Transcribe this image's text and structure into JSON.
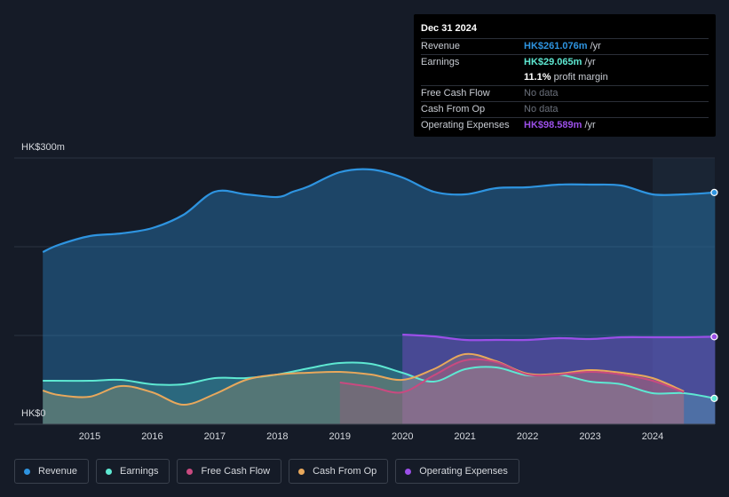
{
  "chart_data": {
    "type": "area",
    "y_unit_label_top": "HK$300m",
    "y_unit_label_bottom": "HK$0",
    "ylim": [
      0,
      300
    ],
    "xlim": [
      2014.0,
      2025.0
    ],
    "x_ticks": [
      "2015",
      "2016",
      "2017",
      "2018",
      "2019",
      "2020",
      "2021",
      "2022",
      "2023",
      "2024"
    ],
    "forecast_shade_start": 2024.0,
    "series": [
      {
        "name": "Revenue",
        "color": "#2e94e0",
        "points": [
          [
            2014.25,
            194
          ],
          [
            2014.5,
            202
          ],
          [
            2015.0,
            212
          ],
          [
            2015.5,
            215
          ],
          [
            2016.0,
            221
          ],
          [
            2016.5,
            236
          ],
          [
            2017.0,
            262
          ],
          [
            2017.5,
            259
          ],
          [
            2018.0,
            256
          ],
          [
            2018.25,
            262
          ],
          [
            2018.5,
            268
          ],
          [
            2019.0,
            284
          ],
          [
            2019.5,
            287
          ],
          [
            2020.0,
            278
          ],
          [
            2020.5,
            262
          ],
          [
            2021.0,
            259
          ],
          [
            2021.5,
            266
          ],
          [
            2022.0,
            267
          ],
          [
            2022.5,
            270
          ],
          [
            2023.0,
            270
          ],
          [
            2023.5,
            269
          ],
          [
            2024.0,
            259
          ],
          [
            2024.5,
            259
          ],
          [
            2025.0,
            261.1
          ]
        ]
      },
      {
        "name": "Earnings",
        "color": "#5ee8d2",
        "points": [
          [
            2014.25,
            49
          ],
          [
            2015.0,
            49
          ],
          [
            2015.5,
            50
          ],
          [
            2016.0,
            45
          ],
          [
            2016.5,
            45
          ],
          [
            2017.0,
            52
          ],
          [
            2017.5,
            52
          ],
          [
            2018.0,
            56
          ],
          [
            2018.5,
            63
          ],
          [
            2019.0,
            69
          ],
          [
            2019.5,
            68
          ],
          [
            2020.0,
            58
          ],
          [
            2020.5,
            48
          ],
          [
            2021.0,
            62
          ],
          [
            2021.5,
            64
          ],
          [
            2022.0,
            55
          ],
          [
            2022.5,
            56
          ],
          [
            2023.0,
            48
          ],
          [
            2023.5,
            45
          ],
          [
            2024.0,
            35
          ],
          [
            2024.5,
            35
          ],
          [
            2025.0,
            29.1
          ]
        ]
      },
      {
        "name": "Free Cash Flow",
        "color": "#c94a80",
        "points": [
          [
            2019.0,
            47
          ],
          [
            2019.5,
            42
          ],
          [
            2020.0,
            36
          ],
          [
            2020.5,
            55
          ],
          [
            2021.0,
            72
          ],
          [
            2021.5,
            70
          ],
          [
            2022.0,
            56
          ],
          [
            2022.5,
            56
          ],
          [
            2023.0,
            59
          ],
          [
            2023.5,
            56
          ],
          [
            2024.0,
            49
          ],
          [
            2024.5,
            36
          ]
        ]
      },
      {
        "name": "Cash From Op",
        "color": "#e8a85c",
        "points": [
          [
            2014.25,
            38
          ],
          [
            2014.5,
            33
          ],
          [
            2015.0,
            31
          ],
          [
            2015.5,
            43
          ],
          [
            2016.0,
            36
          ],
          [
            2016.5,
            22
          ],
          [
            2017.0,
            34
          ],
          [
            2017.5,
            50
          ],
          [
            2018.0,
            56
          ],
          [
            2018.5,
            58
          ],
          [
            2019.0,
            59
          ],
          [
            2019.5,
            56
          ],
          [
            2020.0,
            50
          ],
          [
            2020.5,
            62
          ],
          [
            2021.0,
            79
          ],
          [
            2021.5,
            71
          ],
          [
            2022.0,
            57
          ],
          [
            2022.5,
            57
          ],
          [
            2023.0,
            61
          ],
          [
            2023.5,
            58
          ],
          [
            2024.0,
            52
          ],
          [
            2024.5,
            37
          ]
        ]
      },
      {
        "name": "Operating Expenses",
        "color": "#9b4fe8",
        "points": [
          [
            2020.0,
            101
          ],
          [
            2020.5,
            99
          ],
          [
            2021.0,
            95
          ],
          [
            2021.5,
            95
          ],
          [
            2022.0,
            95
          ],
          [
            2022.5,
            97
          ],
          [
            2023.0,
            96
          ],
          [
            2023.5,
            98
          ],
          [
            2024.0,
            98
          ],
          [
            2024.5,
            98
          ],
          [
            2025.0,
            98.6
          ]
        ]
      }
    ],
    "grid": true,
    "legend_position": "bottom-left"
  },
  "tooltip": {
    "date": "Dec 31 2024",
    "rows": [
      {
        "label": "Revenue",
        "value": "HK$261.076m",
        "unit": "/yr",
        "color": "#2e94e0"
      },
      {
        "label": "Earnings",
        "value": "HK$29.065m",
        "unit": "/yr",
        "color": "#5ee8d2"
      },
      {
        "label": "",
        "value": "11.1%",
        "unit": "profit margin",
        "color": "#ffffff"
      },
      {
        "label": "Free Cash Flow",
        "value": "No data",
        "unit": "",
        "color": "#6b717c"
      },
      {
        "label": "Cash From Op",
        "value": "No data",
        "unit": "",
        "color": "#6b717c"
      },
      {
        "label": "Operating Expenses",
        "value": "HK$98.589m",
        "unit": "/yr",
        "color": "#9b4fe8"
      }
    ]
  },
  "legend": [
    {
      "label": "Revenue",
      "color": "#2e94e0"
    },
    {
      "label": "Earnings",
      "color": "#5ee8d2"
    },
    {
      "label": "Free Cash Flow",
      "color": "#c94a80"
    },
    {
      "label": "Cash From Op",
      "color": "#e8a85c"
    },
    {
      "label": "Operating Expenses",
      "color": "#9b4fe8"
    }
  ]
}
